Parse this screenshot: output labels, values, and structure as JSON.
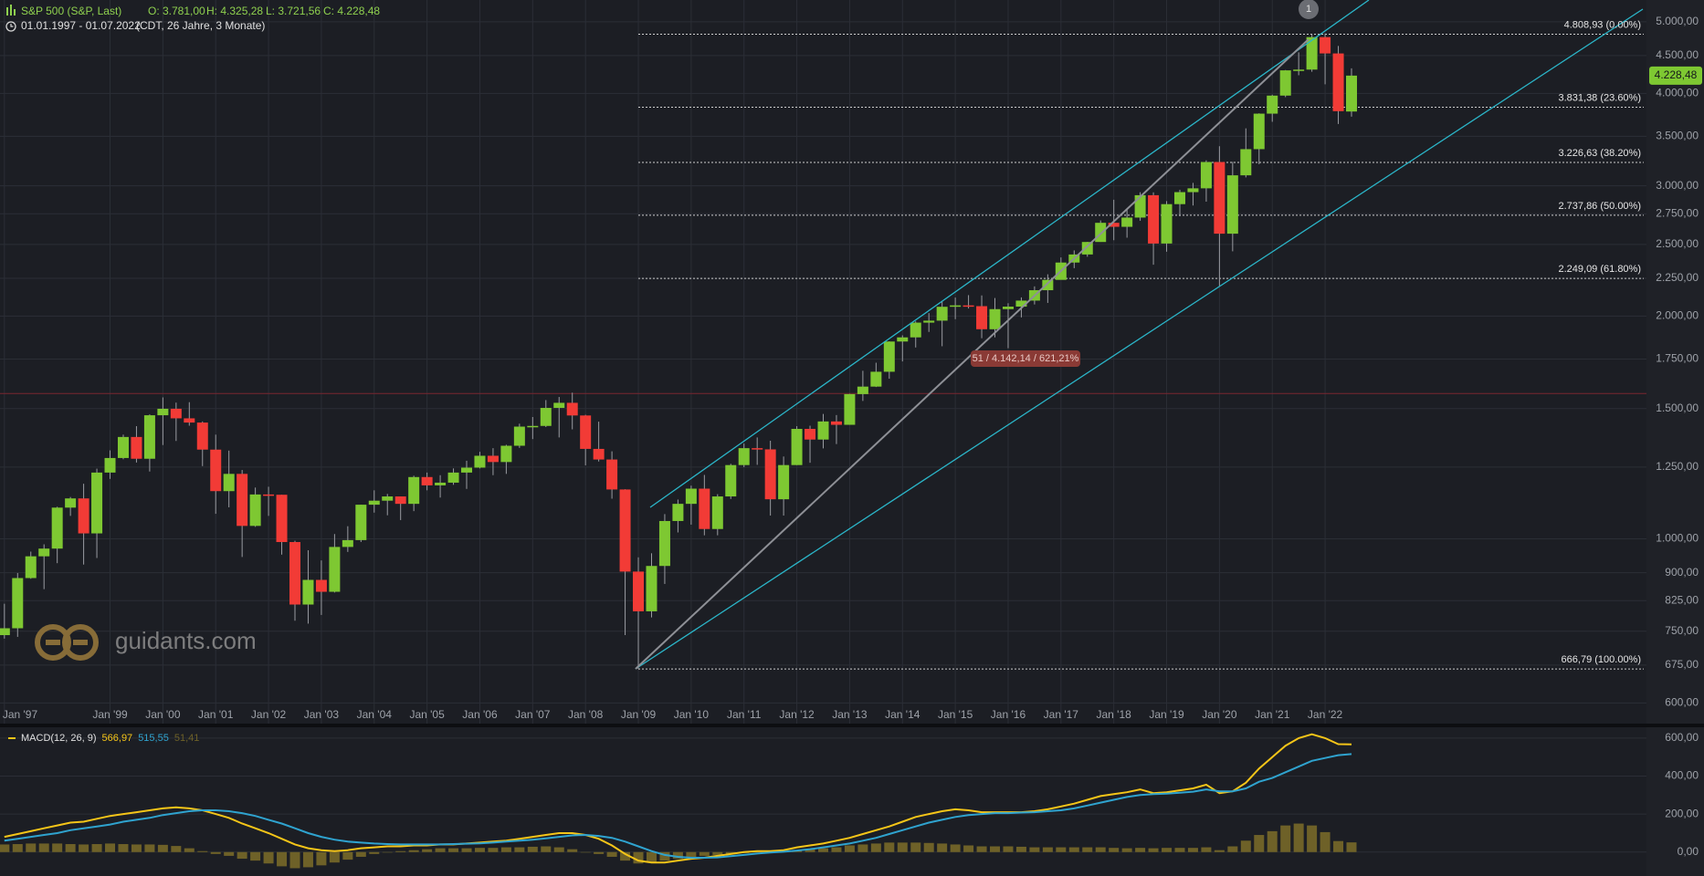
{
  "header": {
    "symbol": "S&P 500 (S&P, Last)",
    "open": "O: 3.781,00",
    "high": "H: 4.325,28",
    "low": "L: 3.721,56",
    "close": "C: 4.228,48",
    "range": "01.01.1997 - 01.07.2022",
    "range_info": "(CDT, 26 Jahre, 3 Monate)",
    "watermark": "guidants.com"
  },
  "chart_data": [
    {
      "type": "candlestick",
      "log_scale": true,
      "grid": true,
      "up_color": "#7ec832",
      "down_color": "#f23b36",
      "x": [
        "1997-01",
        "1997-04",
        "1997-07",
        "1997-10",
        "1998-01",
        "1998-04",
        "1998-07",
        "1998-10",
        "1999-01",
        "1999-04",
        "1999-07",
        "1999-10",
        "2000-01",
        "2000-04",
        "2000-07",
        "2000-10",
        "2001-01",
        "2001-04",
        "2001-07",
        "2001-10",
        "2002-01",
        "2002-04",
        "2002-07",
        "2002-10",
        "2003-01",
        "2003-04",
        "2003-07",
        "2003-10",
        "2004-01",
        "2004-04",
        "2004-07",
        "2004-10",
        "2005-01",
        "2005-04",
        "2005-07",
        "2005-10",
        "2006-01",
        "2006-04",
        "2006-07",
        "2006-10",
        "2007-01",
        "2007-04",
        "2007-07",
        "2007-10",
        "2008-01",
        "2008-04",
        "2008-07",
        "2008-10",
        "2009-01",
        "2009-04",
        "2009-07",
        "2009-10",
        "2010-01",
        "2010-04",
        "2010-07",
        "2010-10",
        "2011-01",
        "2011-04",
        "2011-07",
        "2011-10",
        "2012-01",
        "2012-04",
        "2012-07",
        "2012-10",
        "2013-01",
        "2013-04",
        "2013-07",
        "2013-10",
        "2014-01",
        "2014-04",
        "2014-07",
        "2014-10",
        "2015-01",
        "2015-04",
        "2015-07",
        "2015-10",
        "2016-01",
        "2016-04",
        "2016-07",
        "2016-10",
        "2017-01",
        "2017-04",
        "2017-07",
        "2017-10",
        "2018-01",
        "2018-04",
        "2018-07",
        "2018-10",
        "2019-01",
        "2019-04",
        "2019-07",
        "2019-10",
        "2020-01",
        "2020-04",
        "2020-07",
        "2020-10",
        "2021-01",
        "2021-04",
        "2021-07",
        "2021-10",
        "2022-01",
        "2022-04",
        "2022-07"
      ],
      "open": [
        741,
        757,
        885,
        947,
        970,
        1102,
        1134,
        1017,
        1229,
        1286,
        1373,
        1283,
        1469,
        1499,
        1455,
        1436,
        1320,
        1160,
        1224,
        1041,
        1148,
        1147,
        990,
        815,
        880,
        848,
        975,
        996,
        1112,
        1126,
        1141,
        1115,
        1212,
        1181,
        1191,
        1229,
        1248,
        1295,
        1270,
        1336,
        1418,
        1421,
        1503,
        1527,
        1468,
        1323,
        1280,
        1166,
        903,
        798,
        919,
        1057,
        1115,
        1169,
        1031,
        1141,
        1258,
        1326,
        1321,
        1131,
        1258,
        1408,
        1362,
        1441,
        1426,
        1569,
        1606,
        1682,
        1848,
        1872,
        1960,
        1972,
        2059,
        2068,
        2063,
        1920,
        2044,
        2060,
        2099,
        2168,
        2239,
        2363,
        2423,
        2519,
        2674,
        2641,
        2718,
        2914,
        2507,
        2834,
        2942,
        2977,
        3231,
        2585,
        3100,
        3363,
        3756,
        3973,
        4298,
        4308,
        4766,
        4530,
        3781
      ],
      "high": [
        817,
        899,
        961,
        983,
        1105,
        1139,
        1187,
        1244,
        1317,
        1383,
        1420,
        1473,
        1553,
        1528,
        1530,
        1441,
        1383,
        1316,
        1239,
        1173,
        1176,
        1147,
        994,
        965,
        935,
        1015,
        1040,
        1112,
        1163,
        1150,
        1141,
        1217,
        1229,
        1219,
        1245,
        1275,
        1311,
        1326,
        1340,
        1431,
        1461,
        1540,
        1555,
        1576,
        1471,
        1440,
        1313,
        1167,
        944,
        956,
        1080,
        1130,
        1180,
        1220,
        1149,
        1263,
        1345,
        1371,
        1357,
        1292,
        1420,
        1422,
        1475,
        1470,
        1570,
        1687,
        1730,
        1849,
        1884,
        1968,
        2019,
        2094,
        2119,
        2135,
        2133,
        2116,
        2082,
        2120,
        2194,
        2278,
        2401,
        2454,
        2520,
        2694,
        2873,
        2791,
        2941,
        2940,
        2861,
        2964,
        3028,
        3248,
        3394,
        3233,
        3588,
        3760,
        3984,
        4302,
        4546,
        4808,
        4819,
        4637,
        4325
      ],
      "low": [
        733,
        737,
        883,
        855,
        927,
        1074,
        923,
        942,
        1205,
        1281,
        1268,
        1233,
        1339,
        1356,
        1422,
        1254,
        1081,
        1103,
        945,
        1038,
        1074,
        952,
        775,
        768,
        789,
        846,
        960,
        990,
        1085,
        1076,
        1060,
        1090,
        1163,
        1137,
        1183,
        1168,
        1245,
        1219,
        1224,
        1327,
        1364,
        1416,
        1371,
        1406,
        1257,
        1272,
        1133,
        741,
        667,
        783,
        869,
        1020,
        1045,
        1011,
        1011,
        1132,
        1250,
        1259,
        1075,
        1075,
        1258,
        1267,
        1325,
        1343,
        1426,
        1536,
        1604,
        1646,
        1737,
        1814,
        1904,
        1821,
        1981,
        2048,
        1867,
        1872,
        1810,
        1992,
        2074,
        2084,
        2245,
        2322,
        2406,
        2520,
        2533,
        2553,
        2691,
        2347,
        2444,
        2729,
        2822,
        2856,
        2192,
        2447,
        3080,
        3209,
        3662,
        3954,
        4233,
        4279,
        4115,
        3637,
        3721
      ],
      "close": [
        757,
        885,
        947,
        970,
        1102,
        1134,
        1017,
        1229,
        1286,
        1373,
        1283,
        1469,
        1499,
        1455,
        1436,
        1320,
        1160,
        1224,
        1041,
        1148,
        1147,
        990,
        815,
        880,
        848,
        975,
        996,
        1112,
        1126,
        1141,
        1115,
        1212,
        1181,
        1191,
        1229,
        1248,
        1295,
        1270,
        1336,
        1418,
        1421,
        1503,
        1527,
        1468,
        1323,
        1280,
        1166,
        903,
        798,
        919,
        1057,
        1115,
        1169,
        1031,
        1141,
        1258,
        1326,
        1321,
        1131,
        1258,
        1408,
        1362,
        1441,
        1426,
        1569,
        1606,
        1682,
        1848,
        1872,
        1960,
        1972,
        2059,
        2068,
        2063,
        1920,
        2044,
        2060,
        2099,
        2168,
        2239,
        2363,
        2423,
        2519,
        2674,
        2641,
        2718,
        2914,
        2507,
        2834,
        2942,
        2977,
        3231,
        2585,
        3100,
        3363,
        3756,
        3973,
        4298,
        4308,
        4766,
        4530,
        3785,
        4228
      ],
      "xlim": [
        "1996-12",
        "2028-02"
      ],
      "ylim": [
        561,
        5350
      ],
      "yticks": [
        {
          "value": 600,
          "label": "600,00"
        },
        {
          "value": 675,
          "label": "675,00"
        },
        {
          "value": 750,
          "label": "750,00"
        },
        {
          "value": 825,
          "label": "825,00"
        },
        {
          "value": 900,
          "label": "900,00"
        },
        {
          "value": 1000,
          "label": "1.000,00"
        },
        {
          "value": 1250,
          "label": "1.250,00"
        },
        {
          "value": 1500,
          "label": "1.500,00"
        },
        {
          "value": 1750,
          "label": "1.750,00"
        },
        {
          "value": 2000,
          "label": "2.000,00"
        },
        {
          "value": 2250,
          "label": "2.250,00"
        },
        {
          "value": 2500,
          "label": "2.500,00"
        },
        {
          "value": 2750,
          "label": "2.750,00"
        },
        {
          "value": 3000,
          "label": "3.000,00"
        },
        {
          "value": 3500,
          "label": "3.500,00"
        },
        {
          "value": 4000,
          "label": "4.000,00"
        },
        {
          "value": 4500,
          "label": "4.500,00"
        },
        {
          "value": 5000,
          "label": "5.000,00"
        }
      ],
      "xticks": [
        {
          "value": "1997-01",
          "label": "Jan '97"
        },
        {
          "value": "1999-01",
          "label": "Jan '99"
        },
        {
          "value": "2000-01",
          "label": "Jan '00"
        },
        {
          "value": "2001-01",
          "label": "Jan '01"
        },
        {
          "value": "2002-01",
          "label": "Jan '02"
        },
        {
          "value": "2003-01",
          "label": "Jan '03"
        },
        {
          "value": "2004-01",
          "label": "Jan '04"
        },
        {
          "value": "2005-01",
          "label": "Jan '05"
        },
        {
          "value": "2006-01",
          "label": "Jan '06"
        },
        {
          "value": "2007-01",
          "label": "Jan '07"
        },
        {
          "value": "2008-01",
          "label": "Jan '08"
        },
        {
          "value": "2009-01",
          "label": "Jan '09"
        },
        {
          "value": "2010-01",
          "label": "Jan '10"
        },
        {
          "value": "2011-01",
          "label": "Jan '11"
        },
        {
          "value": "2012-01",
          "label": "Jan '12"
        },
        {
          "value": "2013-01",
          "label": "Jan '13"
        },
        {
          "value": "2014-01",
          "label": "Jan '14"
        },
        {
          "value": "2015-01",
          "label": "Jan '15"
        },
        {
          "value": "2016-01",
          "label": "Jan '16"
        },
        {
          "value": "2017-01",
          "label": "Jan '17"
        },
        {
          "value": "2018-01",
          "label": "Jan '18"
        },
        {
          "value": "2019-01",
          "label": "Jan '19"
        },
        {
          "value": "2020-01",
          "label": "Jan '20"
        },
        {
          "value": "2021-01",
          "label": "Jan '21"
        },
        {
          "value": "2022-01",
          "label": "Jan '22"
        }
      ],
      "fib_start": "2009-01",
      "fib_levels": [
        {
          "value": 4808.93,
          "label": "4.808,93 (0.00%)"
        },
        {
          "value": 3831.38,
          "label": "3.831,38 (23.60%)"
        },
        {
          "value": 3226.63,
          "label": "3.226,63 (38.20%)"
        },
        {
          "value": 2737.86,
          "label": "2.737,86 (50.00%)"
        },
        {
          "value": 2249.09,
          "label": "2.249,09 (61.80%)"
        },
        {
          "value": 666.79,
          "label": "666,79 (100.00%)"
        }
      ],
      "last_price": {
        "value": 4228.48,
        "label": "4.228,48"
      },
      "reference_line": {
        "value": 1572,
        "color": "#7a2630"
      },
      "annotation": "51 / 4.142,14 / 621,21%",
      "marker": "1"
    },
    {
      "type": "macd",
      "title": "MACD(12, 26, 9)",
      "ylim": [
        -126,
        657
      ],
      "yticks": [
        {
          "value": 0,
          "label": "0,00"
        },
        {
          "value": 200,
          "label": "200,00"
        },
        {
          "value": 400,
          "label": "400,00"
        },
        {
          "value": 600,
          "label": "600,00"
        }
      ],
      "series": [
        {
          "kind": "line",
          "color": "#f5c518",
          "legend_value": "566,97",
          "values": [
            80,
            95,
            110,
            125,
            140,
            155,
            160,
            175,
            190,
            200,
            210,
            220,
            230,
            235,
            230,
            220,
            200,
            180,
            150,
            125,
            100,
            70,
            40,
            20,
            10,
            5,
            10,
            20,
            25,
            30,
            30,
            35,
            35,
            40,
            40,
            45,
            50,
            55,
            60,
            70,
            80,
            90,
            100,
            100,
            90,
            70,
            35,
            -10,
            -45,
            -55,
            -55,
            -45,
            -35,
            -30,
            -20,
            -10,
            0,
            5,
            5,
            10,
            25,
            35,
            45,
            60,
            75,
            95,
            115,
            135,
            160,
            185,
            200,
            215,
            225,
            220,
            210,
            210,
            210,
            210,
            215,
            225,
            240,
            255,
            275,
            295,
            305,
            315,
            330,
            310,
            315,
            325,
            335,
            355,
            310,
            320,
            365,
            440,
            500,
            560,
            600,
            620,
            600,
            568,
            567
          ]
        },
        {
          "kind": "line",
          "color": "#2fa3cf",
          "legend_value": "515,55",
          "values": [
            60,
            70,
            80,
            90,
            100,
            115,
            125,
            135,
            145,
            160,
            170,
            180,
            195,
            205,
            215,
            220,
            220,
            215,
            205,
            190,
            170,
            150,
            125,
            100,
            80,
            65,
            55,
            50,
            45,
            42,
            40,
            40,
            40,
            40,
            42,
            44,
            46,
            50,
            55,
            60,
            65,
            72,
            80,
            88,
            90,
            85,
            75,
            55,
            30,
            5,
            -15,
            -25,
            -30,
            -30,
            -28,
            -22,
            -15,
            -8,
            -2,
            2,
            8,
            15,
            25,
            35,
            45,
            60,
            75,
            95,
            115,
            135,
            155,
            170,
            185,
            195,
            200,
            205,
            205,
            208,
            210,
            215,
            220,
            230,
            245,
            260,
            275,
            290,
            300,
            305,
            308,
            312,
            318,
            330,
            320,
            320,
            335,
            370,
            390,
            420,
            450,
            480,
            495,
            510,
            516
          ]
        },
        {
          "kind": "histogram",
          "color": "#6e6128",
          "legend_value": "51,41",
          "values": [
            40,
            42,
            45,
            45,
            45,
            42,
            40,
            42,
            45,
            42,
            40,
            40,
            38,
            32,
            20,
            5,
            -10,
            -20,
            -35,
            -45,
            -60,
            -75,
            -85,
            -80,
            -70,
            -55,
            -40,
            -25,
            -10,
            0,
            5,
            10,
            15,
            20,
            20,
            20,
            22,
            22,
            25,
            25,
            28,
            30,
            25,
            15,
            0,
            -10,
            -25,
            -45,
            -60,
            -55,
            -45,
            -35,
            -25,
            -20,
            -15,
            -10,
            -5,
            0,
            5,
            5,
            10,
            15,
            20,
            25,
            35,
            40,
            45,
            50,
            50,
            50,
            48,
            45,
            40,
            35,
            30,
            30,
            30,
            28,
            25,
            25,
            25,
            25,
            25,
            25,
            22,
            20,
            22,
            20,
            22,
            22,
            22,
            25,
            10,
            30,
            60,
            90,
            110,
            140,
            150,
            140,
            105,
            58,
            51
          ]
        }
      ]
    }
  ]
}
